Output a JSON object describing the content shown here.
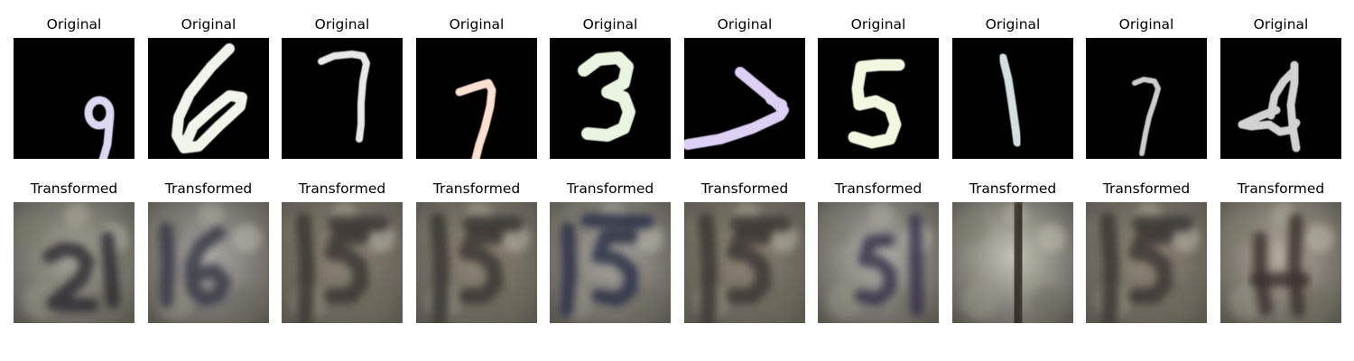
{
  "figure": {
    "rows": [
      {
        "label": "Original",
        "images": [
          {
            "digit": "9",
            "ink": "#dcd8f2",
            "bg": "#000000"
          },
          {
            "digit": "6",
            "ink": "#f0f4ea",
            "bg": "#000000"
          },
          {
            "digit": "7",
            "ink": "#e8e8e8",
            "bg": "#000000"
          },
          {
            "digit": "7",
            "ink": "#fde0d0",
            "bg": "#000000"
          },
          {
            "digit": "3",
            "ink": "#eaf4e0",
            "bg": "#000000"
          },
          {
            "digit": "7",
            "ink": "#dcd0f4",
            "bg": "#000000"
          },
          {
            "digit": "5",
            "ink": "#f2f8e0",
            "bg": "#000000"
          },
          {
            "digit": "1",
            "ink": "#d4e0e0",
            "bg": "#000000"
          },
          {
            "digit": "7",
            "ink": "#cdcdcd",
            "bg": "#000000"
          },
          {
            "digit": "4",
            "ink": "#d2d2d2",
            "bg": "#000000"
          }
        ]
      },
      {
        "label": "Transformed",
        "images": [
          {
            "digit": "2",
            "ink": "#2e2c34",
            "bg": "#a7a698"
          },
          {
            "digit": "6",
            "ink": "#3a3a48",
            "bg": "#a9a8a4"
          },
          {
            "digit": "5",
            "ink": "#3b3532",
            "bg": "#8c8677"
          },
          {
            "digit": "5",
            "ink": "#3b3532",
            "bg": "#8f8979"
          },
          {
            "digit": "5",
            "ink": "#2c2f45",
            "bg": "#aaa8a0"
          },
          {
            "digit": "5",
            "ink": "#3b3532",
            "bg": "#8c8677"
          },
          {
            "digit": "5",
            "ink": "#38344a",
            "bg": "#b2b3ac"
          },
          {
            "digit": "1",
            "ink": "#2a2520",
            "bg": "#c3c0b4"
          },
          {
            "digit": "5",
            "ink": "#3b3532",
            "bg": "#8f8979"
          },
          {
            "digit": "4",
            "ink": "#3a342e",
            "bg": "#b2ad9f"
          }
        ]
      }
    ]
  }
}
